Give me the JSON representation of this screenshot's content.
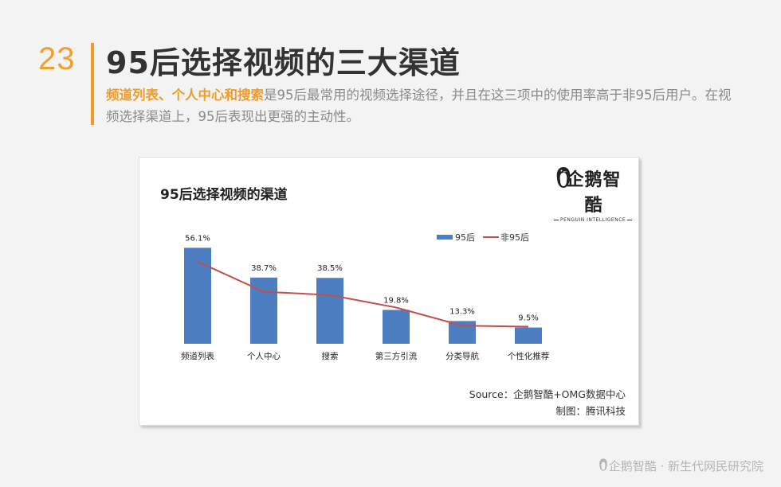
{
  "slide": {
    "number": "23",
    "title": "95后选择视频的三大渠道",
    "subtitle_highlight": "频道列表、个人中心和搜索",
    "subtitle_rest": "是95后最常用的视频选择途径，并且在这三项中的使用率高于非95后用户。在视频选择渠道上，95后表现出更强的主动性。"
  },
  "chart_data": {
    "type": "bar",
    "title": "95后选择视频的渠道",
    "categories": [
      "频道列表",
      "个人中心",
      "搜索",
      "第三方引流",
      "分类导航",
      "个性化推荐"
    ],
    "series": [
      {
        "name": "95后",
        "type": "bar",
        "color": "#4e7ec2",
        "values": [
          56.1,
          38.7,
          38.5,
          19.8,
          13.3,
          9.5
        ],
        "labels": [
          "56.1%",
          "38.7%",
          "38.5%",
          "19.8%",
          "13.3%",
          "9.5%"
        ]
      },
      {
        "name": "非95后",
        "type": "line",
        "color": "#c0504d",
        "values": [
          48.0,
          30.4,
          28.5,
          21.2,
          10.6,
          10.0
        ]
      }
    ],
    "ylim": [
      0,
      60
    ],
    "legend": "top-right",
    "grid": false
  },
  "logo": {
    "cn": "企鹅智酷",
    "en": "PENGUIN INTELLIGENCE"
  },
  "source": {
    "line1": "Source：企鹅智酷+OMG数据中心",
    "line2": "制图：腾讯科技"
  },
  "footer": {
    "text": "企鹅智酷 · 新生代网民研究院"
  },
  "colors": {
    "accent": "#f29b2a",
    "bar": "#4e7ec2",
    "line": "#c0504d"
  }
}
